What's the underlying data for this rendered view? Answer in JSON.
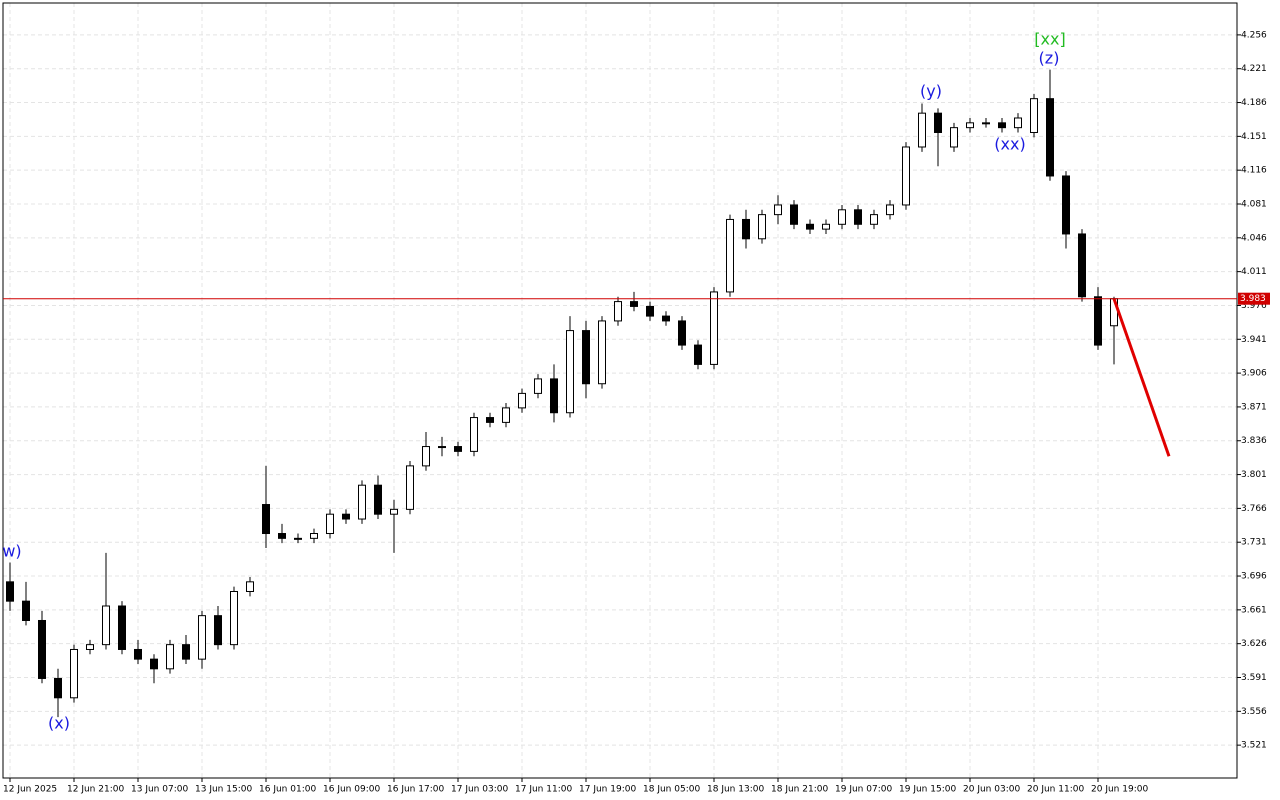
{
  "chart_data": {
    "type": "candlestick",
    "categories": [
      "12 Jun 2025",
      null,
      null,
      null,
      "12 Jun 21:00",
      null,
      null,
      null,
      "13 Jun 07:00",
      null,
      null,
      null,
      "13 Jun 15:00",
      null,
      null,
      null,
      "16 Jun 01:00",
      null,
      null,
      null,
      "16 Jun 09:00",
      null,
      null,
      null,
      "16 Jun 17:00",
      null,
      null,
      null,
      "17 Jun 03:00",
      null,
      null,
      null,
      "17 Jun 11:00",
      null,
      null,
      null,
      "17 Jun 19:00",
      null,
      null,
      null,
      "18 Jun 05:00",
      null,
      null,
      null,
      "18 Jun 13:00",
      null,
      null,
      null,
      "18 Jun 21:00",
      null,
      null,
      null,
      "19 Jun 07:00",
      null,
      null,
      null,
      "19 Jun 15:00",
      null,
      null,
      null,
      "20 Jun 03:00",
      null,
      null,
      null,
      "20 Jun 11:00",
      null,
      null,
      null,
      "20 Jun 19:00",
      null
    ],
    "open": [
      3.69,
      3.67,
      3.65,
      3.59,
      3.57,
      3.62,
      3.625,
      3.665,
      3.62,
      3.61,
      3.6,
      3.625,
      3.61,
      3.655,
      3.625,
      3.68,
      3.77,
      3.74,
      3.735,
      3.735,
      3.74,
      3.76,
      3.755,
      3.79,
      3.76,
      3.765,
      3.81,
      3.83,
      3.83,
      3.825,
      3.86,
      3.855,
      3.87,
      3.885,
      3.9,
      3.865,
      3.95,
      3.895,
      3.96,
      3.98,
      3.975,
      3.965,
      3.96,
      3.935,
      3.915,
      3.99,
      4.065,
      4.045,
      4.07,
      4.08,
      4.06,
      4.055,
      4.06,
      4.075,
      4.06,
      4.07,
      4.08,
      4.14,
      4.175,
      4.14,
      4.16,
      4.165,
      4.165,
      4.16,
      4.155,
      4.19,
      4.11,
      4.05,
      3.985,
      3.955
    ],
    "high": [
      3.71,
      3.69,
      3.66,
      3.6,
      3.625,
      3.63,
      3.72,
      3.67,
      3.63,
      3.615,
      3.63,
      3.635,
      3.66,
      3.665,
      3.685,
      3.695,
      3.81,
      3.75,
      3.74,
      3.745,
      3.765,
      3.765,
      3.795,
      3.8,
      3.775,
      3.815,
      3.845,
      3.84,
      3.835,
      3.865,
      3.865,
      3.875,
      3.89,
      3.905,
      3.915,
      3.965,
      3.96,
      3.965,
      3.985,
      3.99,
      3.98,
      3.97,
      3.965,
      3.94,
      3.995,
      4.07,
      4.075,
      4.075,
      4.09,
      4.085,
      4.065,
      4.065,
      4.08,
      4.08,
      4.075,
      4.085,
      4.145,
      4.185,
      4.18,
      4.165,
      4.17,
      4.17,
      4.17,
      4.175,
      4.195,
      4.22,
      4.115,
      4.055,
      3.995,
      3.985
    ],
    "low": [
      3.66,
      3.645,
      3.585,
      3.55,
      3.565,
      3.615,
      3.62,
      3.615,
      3.605,
      3.585,
      3.595,
      3.605,
      3.6,
      3.62,
      3.62,
      3.675,
      3.725,
      3.73,
      3.73,
      3.73,
      3.735,
      3.75,
      3.75,
      3.755,
      3.72,
      3.76,
      3.805,
      3.82,
      3.82,
      3.82,
      3.85,
      3.85,
      3.865,
      3.88,
      3.855,
      3.86,
      3.88,
      3.89,
      3.955,
      3.97,
      3.96,
      3.955,
      3.93,
      3.91,
      3.91,
      3.985,
      4.035,
      4.04,
      4.06,
      4.055,
      4.05,
      4.05,
      4.055,
      4.055,
      4.055,
      4.065,
      4.075,
      4.135,
      4.12,
      4.135,
      4.155,
      4.16,
      4.155,
      4.155,
      4.15,
      4.105,
      4.035,
      3.98,
      3.93,
      3.915
    ],
    "close": [
      3.67,
      3.65,
      3.59,
      3.57,
      3.62,
      3.625,
      3.665,
      3.62,
      3.61,
      3.6,
      3.625,
      3.61,
      3.655,
      3.625,
      3.68,
      3.69,
      3.74,
      3.735,
      3.735,
      3.74,
      3.76,
      3.755,
      3.79,
      3.76,
      3.765,
      3.81,
      3.83,
      3.83,
      3.825,
      3.86,
      3.855,
      3.87,
      3.885,
      3.9,
      3.865,
      3.95,
      3.895,
      3.96,
      3.98,
      3.975,
      3.965,
      3.96,
      3.935,
      3.915,
      3.99,
      4.065,
      4.045,
      4.07,
      4.08,
      4.06,
      4.055,
      4.06,
      4.075,
      4.06,
      4.07,
      4.08,
      4.14,
      4.175,
      4.155,
      4.16,
      4.165,
      4.165,
      4.16,
      4.17,
      4.19,
      4.11,
      4.05,
      3.985,
      3.935,
      3.983
    ],
    "ylim": [
      3.487,
      4.289
    ],
    "yticks": [
      4.256,
      4.221,
      4.186,
      4.151,
      4.116,
      4.081,
      4.046,
      4.011,
      3.976,
      3.941,
      3.906,
      3.871,
      3.836,
      3.801,
      3.766,
      3.731,
      3.696,
      3.661,
      3.626,
      3.591,
      3.556,
      3.521
    ],
    "grid": true,
    "up_color": "#ffffff",
    "down_color": "#000000",
    "current_price": 3.983,
    "current_price_color": "#d00000",
    "projection": {
      "to": 3.82,
      "color": "#e00000"
    },
    "annotations": [
      {
        "text": "w)",
        "color": "#1a1adf"
      },
      {
        "text": "(x)",
        "color": "#1a1adf"
      },
      {
        "text": "(y)",
        "color": "#1a1adf"
      },
      {
        "text": "(xx)",
        "color": "#1a1adf"
      },
      {
        "text": "(z)",
        "color": "#1a1adf"
      },
      {
        "text": "[xx]",
        "color": "#22bb22"
      }
    ]
  }
}
